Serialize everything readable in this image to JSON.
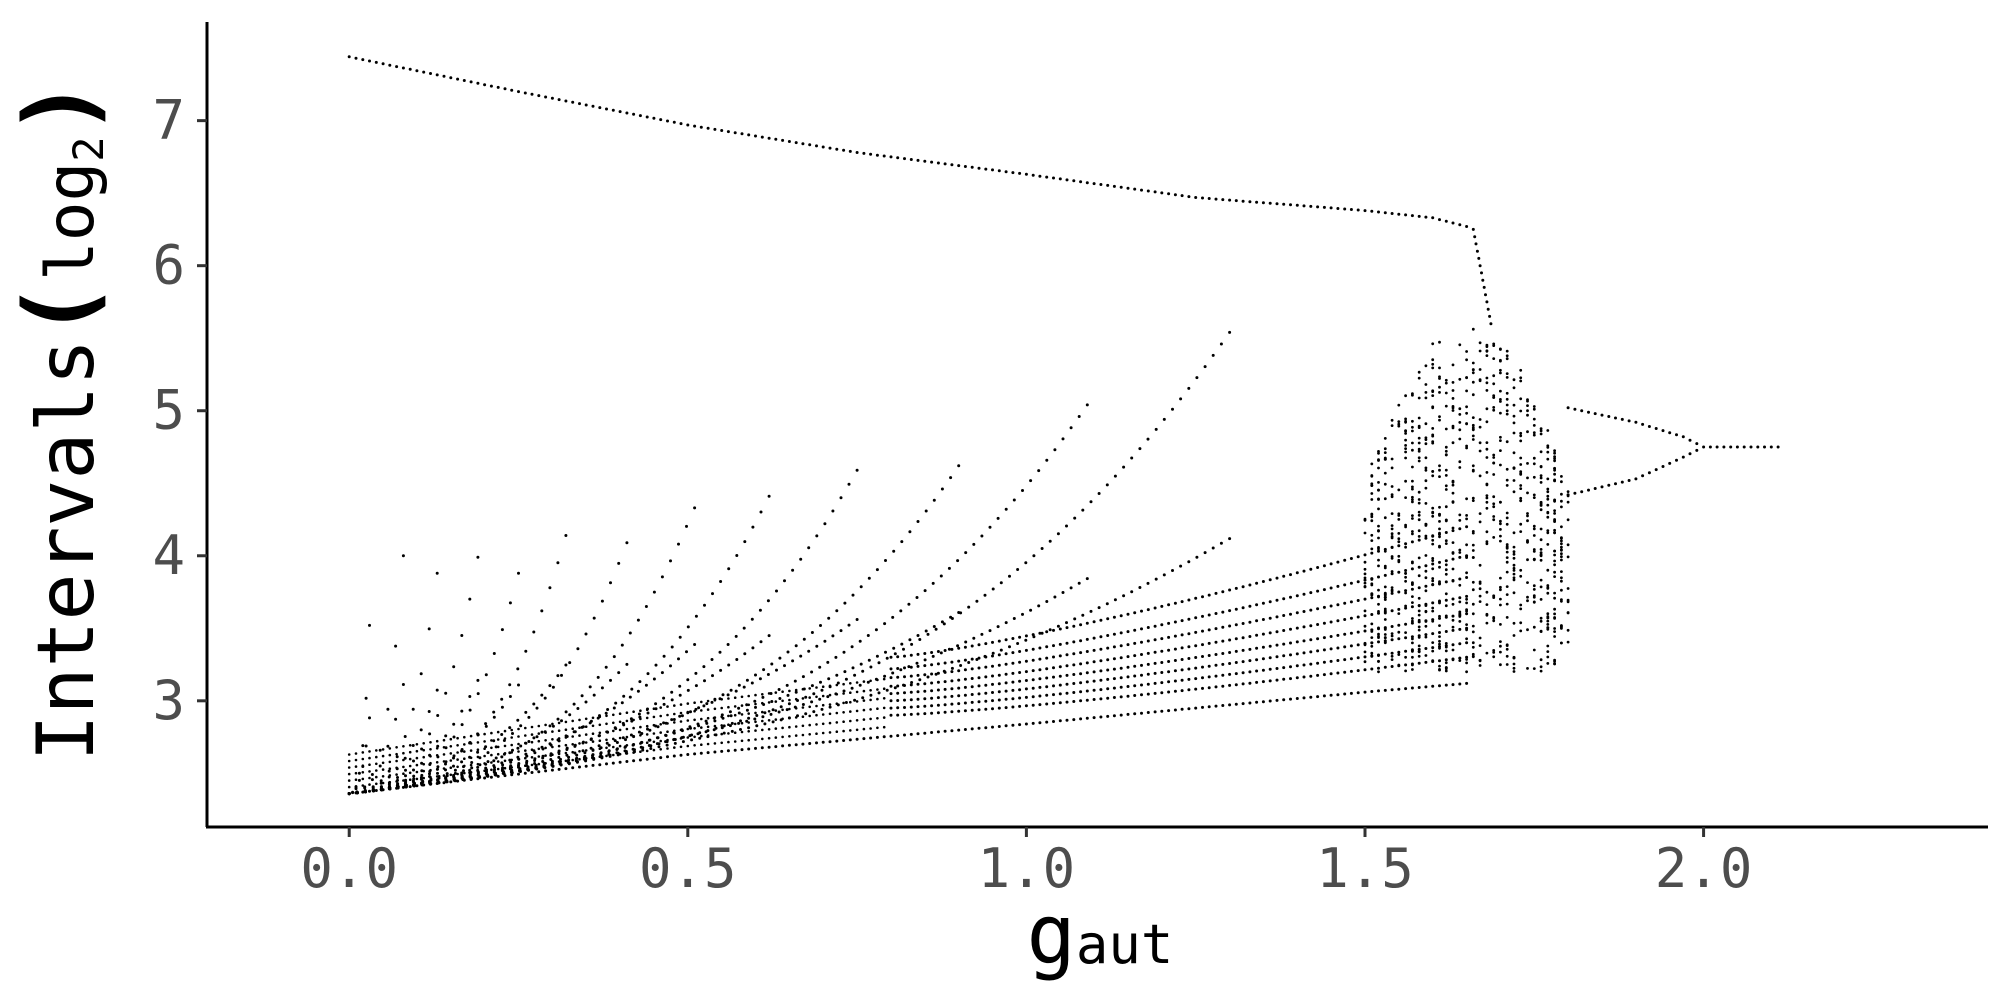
{
  "chart_data": {
    "type": "scatter",
    "title": "",
    "xlabel": {
      "main": "g",
      "sub": "aut"
    },
    "ylabel": {
      "main": "Intervals",
      "open": "(",
      "inner": "log",
      "sub": "2",
      "close": ")"
    },
    "xlim": [
      -0.21,
      2.42
    ],
    "ylim": [
      2.13,
      7.68
    ],
    "x_ticks": [
      0.0,
      0.5,
      1.0,
      1.5,
      2.0
    ],
    "x_tick_labels": [
      "0.0",
      "0.5",
      "1.0",
      "1.5",
      "2.0"
    ],
    "y_ticks": [
      3,
      4,
      5,
      6,
      7
    ],
    "y_tick_labels": [
      "3",
      "4",
      "5",
      "6",
      "7"
    ],
    "grid": false,
    "legend": "none",
    "marker_color": "#000000",
    "axis_color": "#000000",
    "branches": {
      "top": {
        "x": [
          0.0,
          0.25,
          0.5,
          0.75,
          1.0,
          1.25,
          1.5,
          1.6,
          1.65
        ],
        "y": [
          7.44,
          7.2,
          6.97,
          6.78,
          6.63,
          6.47,
          6.38,
          6.33,
          6.27
        ]
      },
      "bottom": {
        "x": [
          0.0,
          0.5,
          1.0,
          1.5,
          1.65
        ],
        "y": [
          2.36,
          2.63,
          2.84,
          3.06,
          3.12
        ]
      },
      "window_fans": [
        {
          "x_start": 0.0,
          "x_peak": 0.03,
          "y_peak": 3.5
        },
        {
          "x_start": 0.0,
          "x_peak": 0.08,
          "y_peak": 3.98
        },
        {
          "x_start": 0.0,
          "x_peak": 0.13,
          "y_peak": 3.86
        },
        {
          "x_start": 0.0,
          "x_peak": 0.19,
          "y_peak": 3.97
        },
        {
          "x_start": 0.0,
          "x_peak": 0.25,
          "y_peak": 3.86
        },
        {
          "x_start": 0.0,
          "x_peak": 0.32,
          "y_peak": 4.12
        },
        {
          "x_start": 0.0,
          "x_peak": 0.41,
          "y_peak": 4.07
        },
        {
          "x_start": 0.0,
          "x_peak": 0.51,
          "y_peak": 4.31
        },
        {
          "x_start": 0.0,
          "x_peak": 0.62,
          "y_peak": 4.39
        },
        {
          "x_start": 0.0,
          "x_peak": 0.75,
          "y_peak": 4.57
        },
        {
          "x_start": 0.0,
          "x_peak": 0.9,
          "y_peak": 4.6
        },
        {
          "x_start": 0.0,
          "x_peak": 1.09,
          "y_peak": 5.02
        },
        {
          "x_start": 0.0,
          "x_peak": 1.3,
          "y_peak": 5.52
        }
      ],
      "converging_lines": {
        "x_start": 0.8,
        "x_end": 1.65,
        "y_start": [
          2.9,
          2.95,
          3.0,
          3.05,
          3.1,
          3.16,
          3.22,
          3.3
        ],
        "y_end": [
          3.3,
          3.4,
          3.5,
          3.6,
          3.72,
          3.85,
          4.0,
          4.2
        ]
      },
      "chaos_region": {
        "x": [
          1.5,
          1.8
        ],
        "y": [
          3.2,
          5.6
        ]
      },
      "pitchfork": {
        "x": [
          1.8,
          1.9,
          1.97,
          2.0,
          2.11
        ],
        "upper": [
          5.02,
          4.92,
          4.82,
          4.75,
          4.75
        ],
        "lower": [
          4.42,
          4.53,
          4.68,
          4.75,
          4.75
        ]
      }
    }
  }
}
